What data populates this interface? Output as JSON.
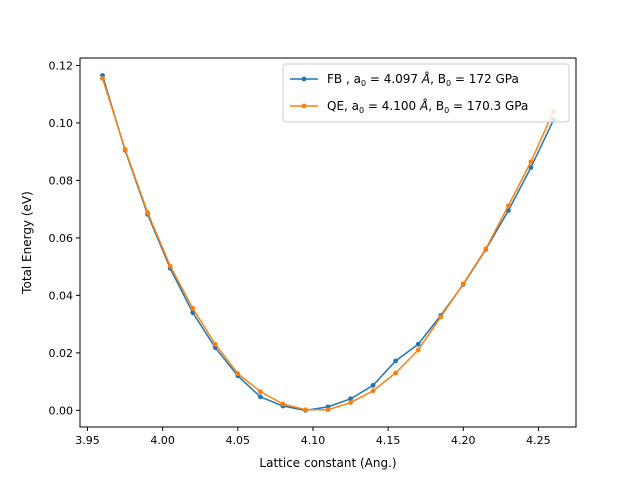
{
  "chart_data": {
    "type": "line",
    "xlabel": "Lattice constant (Ang.)",
    "ylabel": "Total Energy (eV)",
    "xlim": [
      3.945,
      4.275
    ],
    "ylim": [
      -0.0058,
      0.1226
    ],
    "x_ticks": [
      "3.95",
      "4.00",
      "4.05",
      "4.10",
      "4.15",
      "4.20",
      "4.25"
    ],
    "y_ticks": [
      "0.00",
      "0.02",
      "0.04",
      "0.06",
      "0.08",
      "0.10",
      "0.12"
    ],
    "grid": false,
    "legend_position": "top-right",
    "series": [
      {
        "name": "FB , a0 = 4.097 Å, B0 = 172 GPa",
        "legend": {
          "prefix": "FB , a",
          "sub1": "0",
          "mid": " = 4.097 ",
          "unit": "Å",
          "mid2": ", B",
          "sub2": "0",
          "suffix": " = 172 GPa"
        },
        "color": "#1f77b4",
        "x": [
          3.96,
          3.975,
          3.99,
          4.005,
          4.02,
          4.035,
          4.05,
          4.065,
          4.08,
          4.095,
          4.11,
          4.125,
          4.14,
          4.155,
          4.17,
          4.185,
          4.2,
          4.215,
          4.23,
          4.245,
          4.26
        ],
        "y": [
          0.1165,
          0.0905,
          0.0682,
          0.0494,
          0.034,
          0.0218,
          0.012,
          0.0047,
          0.0015,
          0.0,
          0.0012,
          0.004,
          0.0087,
          0.0172,
          0.023,
          0.033,
          0.0438,
          0.056,
          0.0695,
          0.0845,
          0.101
        ]
      },
      {
        "name": "QE, a0 = 4.100 Å, B0 = 170.3 GPa",
        "legend": {
          "prefix": "QE, a",
          "sub1": "0",
          "mid": " = 4.100 ",
          "unit": "Å",
          "mid2": ", B",
          "sub2": "0",
          "suffix": " = 170.3 GPa"
        },
        "color": "#ff7f0e",
        "x": [
          3.96,
          3.975,
          3.99,
          4.005,
          4.02,
          4.035,
          4.05,
          4.065,
          4.08,
          4.095,
          4.11,
          4.125,
          4.14,
          4.155,
          4.17,
          4.185,
          4.2,
          4.215,
          4.23,
          4.245,
          4.26
        ],
        "y": [
          0.1155,
          0.0908,
          0.0688,
          0.0502,
          0.0355,
          0.023,
          0.0128,
          0.0065,
          0.0022,
          0.0002,
          0.0002,
          0.0027,
          0.0068,
          0.013,
          0.021,
          0.0325,
          0.044,
          0.0562,
          0.0712,
          0.0865,
          0.104
        ]
      }
    ]
  }
}
